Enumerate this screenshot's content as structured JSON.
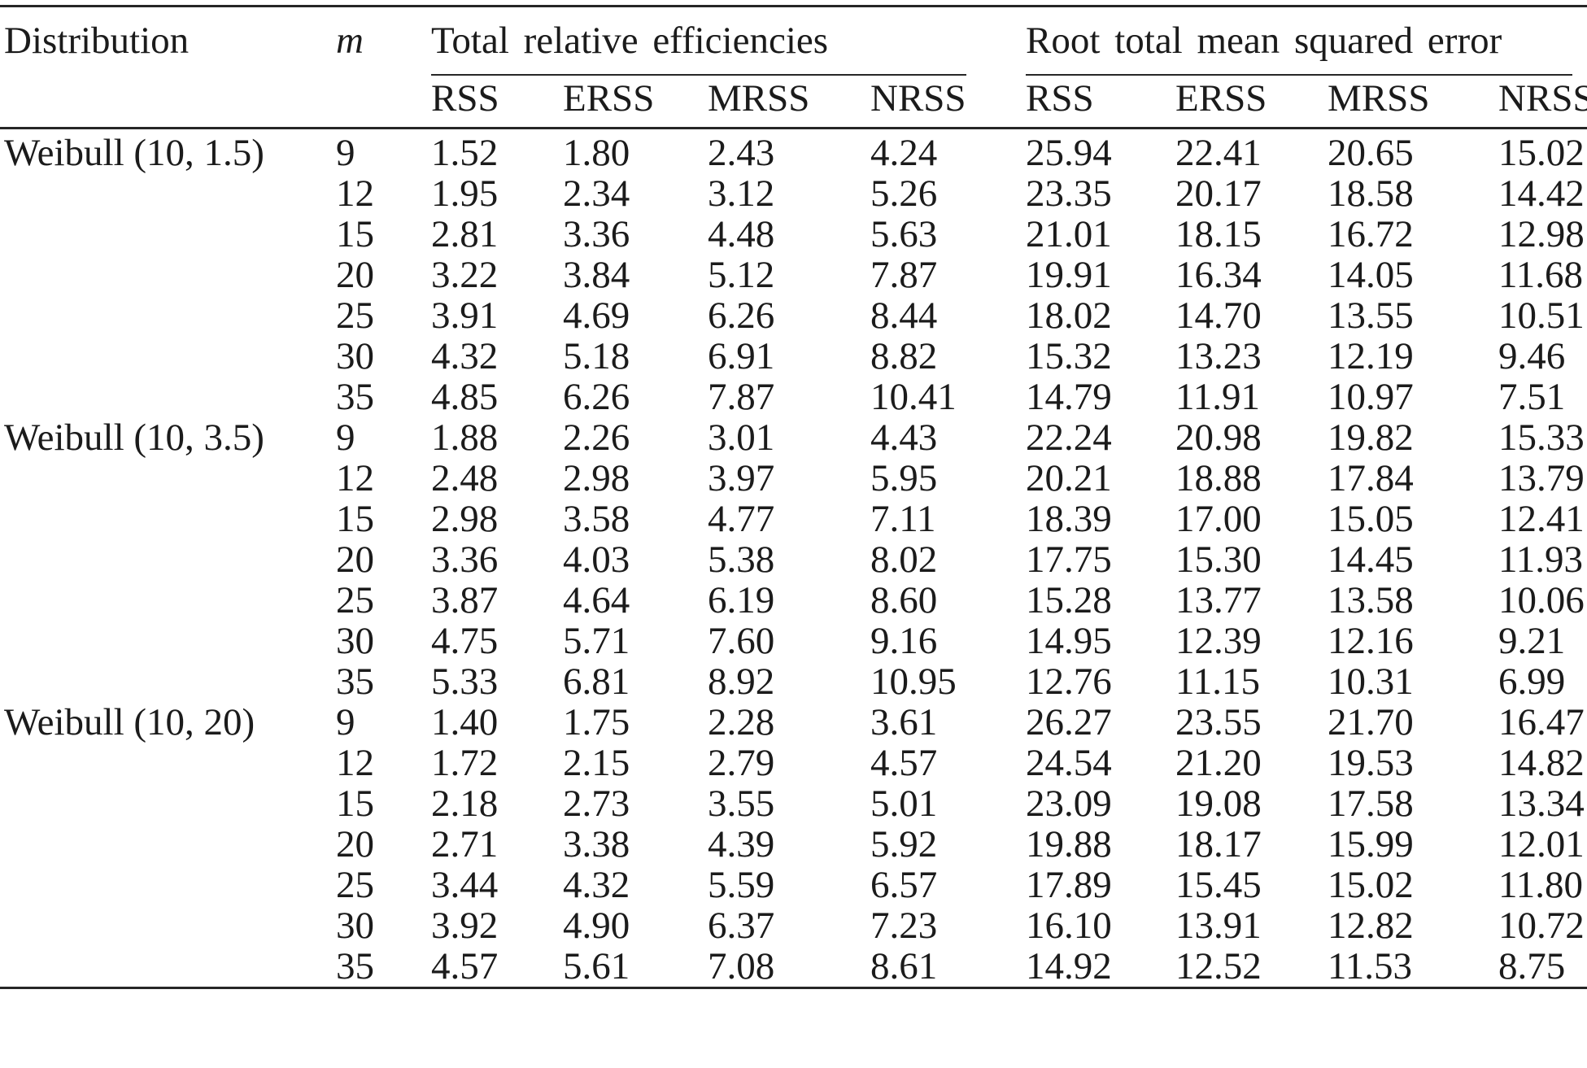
{
  "table": {
    "header": {
      "distribution": "Distribution",
      "m": "m",
      "group1": "Total relative efficiencies",
      "group2": "Root total mean squared error",
      "sub": [
        "RSS",
        "ERSS",
        "MRSS",
        "NRSS"
      ]
    },
    "groups": [
      {
        "distribution": "Weibull (10, 1.5)",
        "rows": [
          {
            "m": "9",
            "eff": [
              "1.52",
              "1.80",
              "2.43",
              "4.24"
            ],
            "rmse": [
              "25.94",
              "22.41",
              "20.65",
              "15.02"
            ]
          },
          {
            "m": "12",
            "eff": [
              "1.95",
              "2.34",
              "3.12",
              "5.26"
            ],
            "rmse": [
              "23.35",
              "20.17",
              "18.58",
              "14.42"
            ]
          },
          {
            "m": "15",
            "eff": [
              "2.81",
              "3.36",
              "4.48",
              "5.63"
            ],
            "rmse": [
              "21.01",
              "18.15",
              "16.72",
              "12.98"
            ]
          },
          {
            "m": "20",
            "eff": [
              "3.22",
              "3.84",
              "5.12",
              "7.87"
            ],
            "rmse": [
              "19.91",
              "16.34",
              "14.05",
              "11.68"
            ]
          },
          {
            "m": "25",
            "eff": [
              "3.91",
              "4.69",
              "6.26",
              "8.44"
            ],
            "rmse": [
              "18.02",
              "14.70",
              "13.55",
              "10.51"
            ]
          },
          {
            "m": "30",
            "eff": [
              "4.32",
              "5.18",
              "6.91",
              "8.82"
            ],
            "rmse": [
              "15.32",
              "13.23",
              "12.19",
              "9.46"
            ]
          },
          {
            "m": "35",
            "eff": [
              "4.85",
              "6.26",
              "7.87",
              "10.41"
            ],
            "rmse": [
              "14.79",
              "11.91",
              "10.97",
              "7.51"
            ]
          }
        ]
      },
      {
        "distribution": "Weibull (10, 3.5)",
        "rows": [
          {
            "m": "9",
            "eff": [
              "1.88",
              "2.26",
              "3.01",
              "4.43"
            ],
            "rmse": [
              "22.24",
              "20.98",
              "19.82",
              "15.33"
            ]
          },
          {
            "m": "12",
            "eff": [
              "2.48",
              "2.98",
              "3.97",
              "5.95"
            ],
            "rmse": [
              "20.21",
              "18.88",
              "17.84",
              "13.79"
            ]
          },
          {
            "m": "15",
            "eff": [
              "2.98",
              "3.58",
              "4.77",
              "7.11"
            ],
            "rmse": [
              "18.39",
              "17.00",
              "15.05",
              "12.41"
            ]
          },
          {
            "m": "20",
            "eff": [
              "3.36",
              "4.03",
              "5.38",
              "8.02"
            ],
            "rmse": [
              "17.75",
              "15.30",
              "14.45",
              "11.93"
            ]
          },
          {
            "m": "25",
            "eff": [
              "3.87",
              "4.64",
              "6.19",
              "8.60"
            ],
            "rmse": [
              "15.28",
              "13.77",
              "13.58",
              "10.06"
            ]
          },
          {
            "m": "30",
            "eff": [
              "4.75",
              "5.71",
              "7.60",
              "9.16"
            ],
            "rmse": [
              "14.95",
              "12.39",
              "12.16",
              "9.21"
            ]
          },
          {
            "m": "35",
            "eff": [
              "5.33",
              "6.81",
              "8.92",
              "10.95"
            ],
            "rmse": [
              "12.76",
              "11.15",
              "10.31",
              "6.99"
            ]
          }
        ]
      },
      {
        "distribution": "Weibull (10, 20)",
        "rows": [
          {
            "m": "9",
            "eff": [
              "1.40",
              "1.75",
              "2.28",
              "3.61"
            ],
            "rmse": [
              "26.27",
              "23.55",
              "21.70",
              "16.47"
            ]
          },
          {
            "m": "12",
            "eff": [
              "1.72",
              "2.15",
              "2.79",
              "4.57"
            ],
            "rmse": [
              "24.54",
              "21.20",
              "19.53",
              "14.82"
            ]
          },
          {
            "m": "15",
            "eff": [
              "2.18",
              "2.73",
              "3.55",
              "5.01"
            ],
            "rmse": [
              "23.09",
              "19.08",
              "17.58",
              "13.34"
            ]
          },
          {
            "m": "20",
            "eff": [
              "2.71",
              "3.38",
              "4.39",
              "5.92"
            ],
            "rmse": [
              "19.88",
              "18.17",
              "15.99",
              "12.01"
            ]
          },
          {
            "m": "25",
            "eff": [
              "3.44",
              "4.32",
              "5.59",
              "6.57"
            ],
            "rmse": [
              "17.89",
              "15.45",
              "15.02",
              "11.80"
            ]
          },
          {
            "m": "30",
            "eff": [
              "3.92",
              "4.90",
              "6.37",
              "7.23"
            ],
            "rmse": [
              "16.10",
              "13.91",
              "12.82",
              "10.72"
            ]
          },
          {
            "m": "35",
            "eff": [
              "4.57",
              "5.61",
              "7.08",
              "8.61"
            ],
            "rmse": [
              "14.92",
              "12.52",
              "11.53",
              "8.75"
            ]
          }
        ]
      }
    ]
  }
}
